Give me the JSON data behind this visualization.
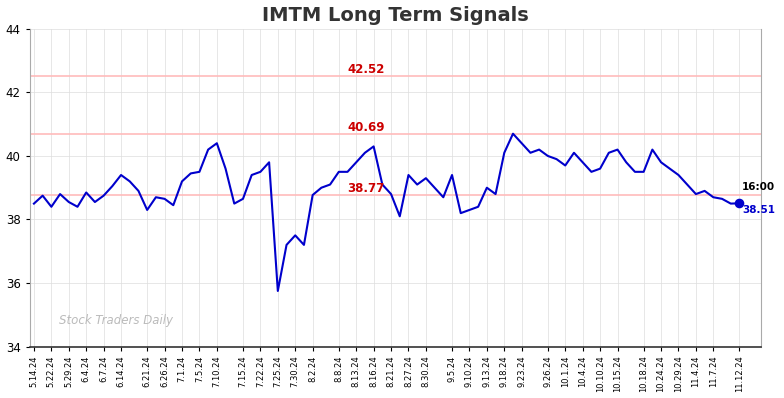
{
  "title": "IMTM Long Term Signals",
  "title_fontsize": 14,
  "title_fontweight": "bold",
  "title_color": "#333333",
  "watermark": "Stock Traders Daily",
  "ylim": [
    34,
    44
  ],
  "yticks": [
    34,
    36,
    38,
    40,
    42,
    44
  ],
  "hlines": [
    {
      "y": 42.52,
      "color": "#ffbbbb",
      "linewidth": 1.2,
      "label": "42.52",
      "label_color": "#cc0000"
    },
    {
      "y": 40.69,
      "color": "#ffbbbb",
      "linewidth": 1.2,
      "label": "40.69",
      "label_color": "#cc0000"
    },
    {
      "y": 38.77,
      "color": "#ffbbbb",
      "linewidth": 1.2,
      "label": "38.77",
      "label_color": "#cc0000"
    }
  ],
  "line_color": "#0000cc",
  "line_width": 1.5,
  "endpoint_color": "#0000cc",
  "endpoint_size": 35,
  "background_color": "#ffffff",
  "plot_bg_color": "#ffffff",
  "grid_color": "#dddddd",
  "xtick_labels": [
    "5.14.24",
    "5.22.24",
    "5.29.24",
    "6.4.24",
    "6.7.24",
    "6.14.24",
    "6.21.24",
    "6.26.24",
    "7.1.24",
    "7.5.24",
    "7.10.24",
    "7.15.24",
    "7.22.24",
    "7.25.24",
    "7.30.24",
    "8.2.24",
    "8.8.24",
    "8.13.24",
    "8.16.24",
    "8.21.24",
    "8.27.24",
    "8.30.24",
    "9.5.24",
    "9.10.24",
    "9.13.24",
    "9.18.24",
    "9.23.24",
    "9.26.24",
    "10.1.24",
    "10.4.24",
    "10.10.24",
    "10.15.24",
    "10.18.24",
    "10.24.24",
    "10.29.24",
    "11.4.24",
    "11.7.24",
    "11.12.24"
  ],
  "prices": [
    38.5,
    38.75,
    38.4,
    38.8,
    38.55,
    38.4,
    38.85,
    38.55,
    38.75,
    39.05,
    39.4,
    39.2,
    38.9,
    38.3,
    38.7,
    38.65,
    38.45,
    39.2,
    39.45,
    39.5,
    40.2,
    40.4,
    39.6,
    38.5,
    38.65,
    39.4,
    39.5,
    39.8,
    35.75,
    37.2,
    37.5,
    37.2,
    38.77,
    39.0,
    39.1,
    39.5,
    39.5,
    39.8,
    40.1,
    40.3,
    39.1,
    38.8,
    38.1,
    39.4,
    39.1,
    39.3,
    39.0,
    38.7,
    39.4,
    38.2,
    38.3,
    38.4,
    39.0,
    38.8,
    40.1,
    40.7,
    40.4,
    40.1,
    40.2,
    40.0,
    39.9,
    39.7,
    40.1,
    39.8,
    39.5,
    39.6,
    40.1,
    40.2,
    39.8,
    39.5,
    39.5,
    40.2,
    39.8,
    39.6,
    39.4,
    39.1,
    38.8,
    38.9,
    38.7,
    38.65,
    38.5,
    38.51
  ]
}
